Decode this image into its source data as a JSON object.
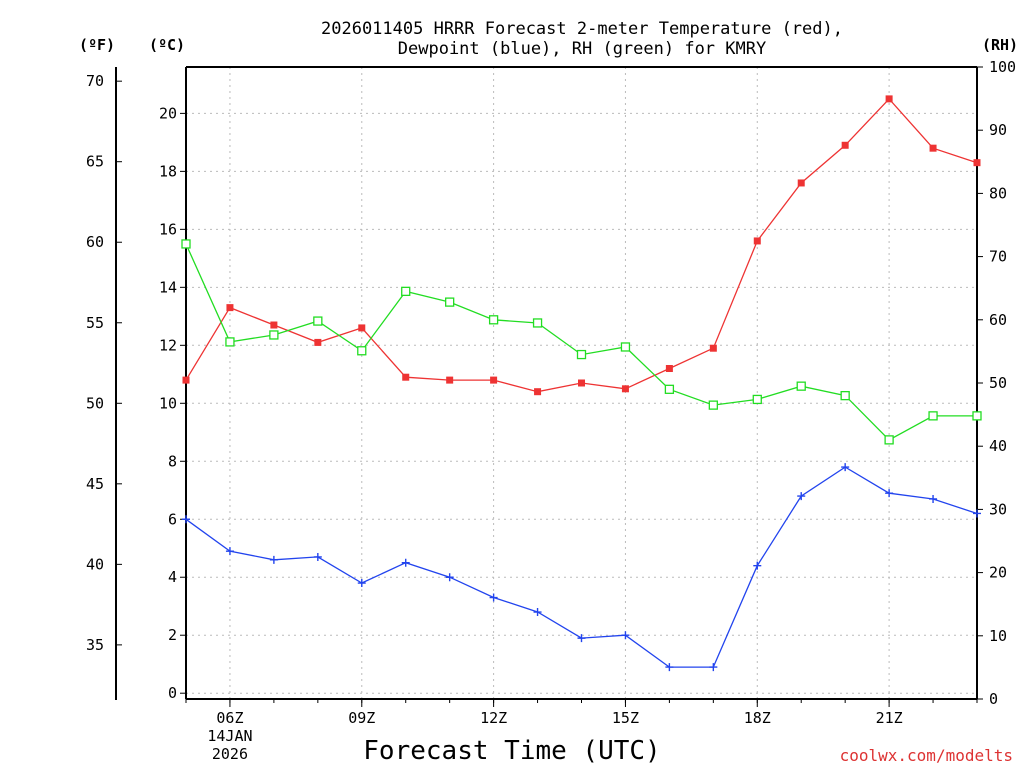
{
  "chart_data": {
    "type": "line",
    "title_line1": "2026011405 HRRR Forecast 2-meter Temperature (red),",
    "title_line2": "Dewpoint (blue), RH (green) for KMRY",
    "units": {
      "fahrenheit": "(ºF)",
      "celsius": "(ºC)",
      "rh": "(RH)"
    },
    "xlabel": "Forecast Time (UTC)",
    "credit": "coolwx.com/modelts",
    "x": [
      5,
      6,
      7,
      8,
      9,
      10,
      11,
      12,
      13,
      14,
      15,
      16,
      17,
      18,
      19,
      20,
      21,
      22,
      23
    ],
    "xlim": [
      5,
      23
    ],
    "x_ticks": [
      {
        "x": 6,
        "label": "06Z",
        "sub1": "14JAN",
        "sub2": "2026"
      },
      {
        "x": 9,
        "label": "09Z"
      },
      {
        "x": 12,
        "label": "12Z"
      },
      {
        "x": 15,
        "label": "15Z"
      },
      {
        "x": 18,
        "label": "18Z"
      },
      {
        "x": 21,
        "label": "21Z"
      }
    ],
    "ylim_c": [
      -0.2,
      21.6
    ],
    "y_ticks_c": [
      "0",
      "2",
      "4",
      "6",
      "8",
      "10",
      "12",
      "14",
      "16",
      "18",
      "20"
    ],
    "y_ticks_f": [
      "35",
      "40",
      "45",
      "50",
      "55",
      "60",
      "65",
      "70"
    ],
    "ylim_rh": [
      0,
      100
    ],
    "y_ticks_rh": [
      "0",
      "10",
      "20",
      "30",
      "40",
      "50",
      "60",
      "70",
      "80",
      "90",
      "100"
    ],
    "series": [
      {
        "name": "Temperature",
        "axis": "celsius",
        "color": "#ee3333",
        "marker": "filled-square",
        "values": [
          10.8,
          13.3,
          12.7,
          12.1,
          12.6,
          10.9,
          10.8,
          10.8,
          10.4,
          10.7,
          10.5,
          11.2,
          11.9,
          15.6,
          17.6,
          18.9,
          20.5,
          18.8,
          18.3
        ]
      },
      {
        "name": "Dewpoint",
        "axis": "celsius",
        "color": "#2244ee",
        "marker": "plus",
        "values": [
          6.0,
          4.9,
          4.6,
          4.7,
          3.8,
          4.5,
          4.0,
          3.3,
          2.8,
          1.9,
          2.0,
          0.9,
          0.9,
          4.4,
          6.8,
          7.8,
          6.9,
          6.7,
          6.2
        ]
      },
      {
        "name": "RH",
        "axis": "rh",
        "color": "#22dd22",
        "marker": "open-square",
        "values": [
          72.0,
          56.5,
          57.6,
          59.8,
          55.1,
          64.5,
          62.8,
          60.0,
          59.5,
          54.5,
          55.7,
          49.0,
          46.5,
          47.4,
          49.5,
          48.0,
          41.0,
          44.8,
          44.8
        ]
      }
    ]
  }
}
